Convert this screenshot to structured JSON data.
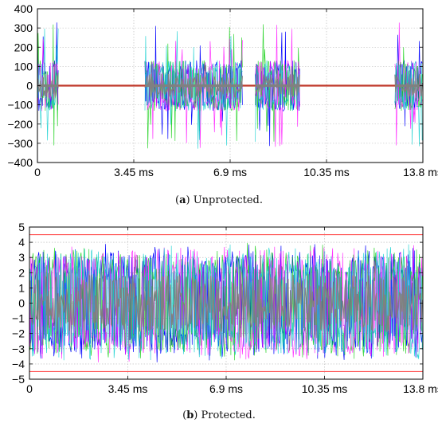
{
  "chart_data": [
    {
      "type": "line",
      "title": "",
      "xlabel": "",
      "ylabel": "",
      "caption_label": "a",
      "caption_text": " Unprotected.",
      "x_ticks": [
        "0",
        "3.45 ms",
        "6.9 ms",
        "10.35 ms",
        "13.8 ms"
      ],
      "x_tick_values_ms": [
        0,
        3.45,
        6.9,
        10.35,
        13.8
      ],
      "xlim_ms": [
        0,
        13.8
      ],
      "ylim": [
        -400,
        400
      ],
      "y_ticks": [
        400,
        300,
        200,
        100,
        0,
        -100,
        -200,
        -300,
        -400
      ],
      "grid": true,
      "reference_line": {
        "value": 0,
        "color": "#c0392b"
      },
      "signal_bursts_ms": [
        [
          0,
          0.75
        ],
        [
          3.85,
          7.35
        ],
        [
          7.8,
          9.4
        ],
        [
          12.8,
          13.8
        ]
      ],
      "series_colors": [
        "#0000ff",
        "#00cc00",
        "#ff00ff",
        "#00cccc",
        "#808080"
      ],
      "burst_core_amplitude": 60,
      "burst_peak_amplitude": 330
    },
    {
      "type": "line",
      "title": "",
      "xlabel": "",
      "ylabel": "",
      "caption_label": "b",
      "caption_text": " Protected.",
      "x_ticks": [
        "0",
        "3.45 ms",
        "6.9 ms",
        "10.35 ms",
        "13.8 ms"
      ],
      "x_tick_values_ms": [
        0,
        3.45,
        6.9,
        10.35,
        13.8
      ],
      "xlim_ms": [
        0,
        13.8
      ],
      "ylim": [
        -5,
        5
      ],
      "y_ticks": [
        5,
        4,
        3,
        2,
        1,
        0,
        -1,
        -2,
        -3,
        -4,
        -5
      ],
      "grid": true,
      "threshold_lines": [
        {
          "value": 4.5,
          "color": "#ff4d4d"
        },
        {
          "value": -4.5,
          "color": "#ff4d4d"
        }
      ],
      "signal_bursts_ms": [
        [
          0,
          13.8
        ]
      ],
      "series_colors": [
        "#0000ff",
        "#00cc00",
        "#ff00ff",
        "#00cccc",
        "#808080"
      ],
      "core_amplitude": 1.8,
      "peak_amplitude": 3.9
    }
  ]
}
